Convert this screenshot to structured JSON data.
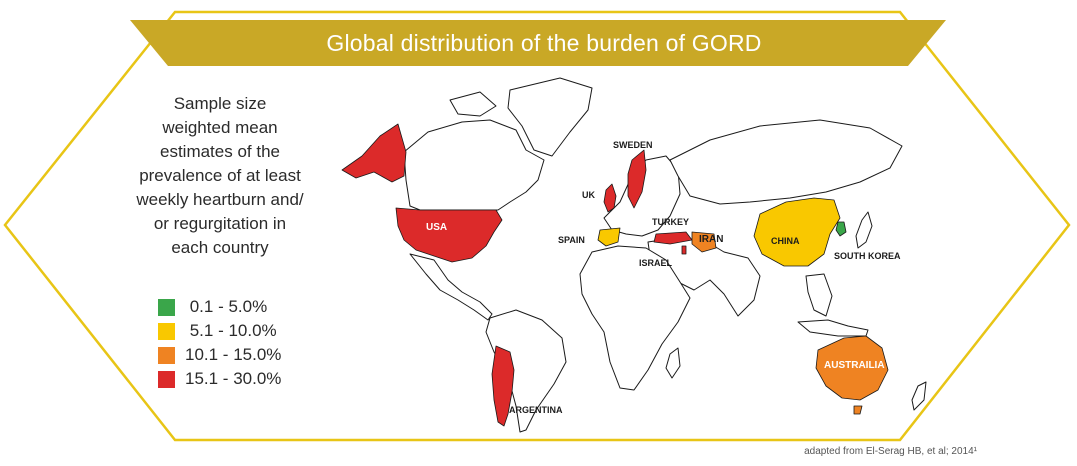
{
  "title": "Global distribution of the burden of GORD",
  "description": [
    "Sample size",
    "weighted mean",
    "estimates of the",
    "prevalence of at least",
    "weekly heartburn and/",
    "or regurgitation in",
    "each country"
  ],
  "legend": [
    {
      "label": " 0.1 - 5.0%",
      "color": "#3aa64a"
    },
    {
      "label": " 5.1 - 10.0%",
      "color": "#f9c800"
    },
    {
      "label": "10.1 - 15.0%",
      "color": "#ef8322"
    },
    {
      "label": "15.1 - 30.0%",
      "color": "#dc2a2a"
    }
  ],
  "countries": {
    "usa": {
      "label": "USA",
      "category": "15.1 - 30.0%"
    },
    "argentina": {
      "label": "ARGENTINA",
      "category": "15.1 - 30.0%"
    },
    "uk": {
      "label": "UK",
      "category": "15.1 - 30.0%"
    },
    "sweden": {
      "label": "SWEDEN",
      "category": "15.1 - 30.0%"
    },
    "spain": {
      "label": "SPAIN",
      "category": "5.1 - 10.0%"
    },
    "turkey": {
      "label": "TURKEY",
      "category": "15.1 - 30.0%"
    },
    "israel": {
      "label": "ISRAEL",
      "category": "15.1 - 30.0%"
    },
    "iran": {
      "label": "IRAN",
      "category": "10.1 - 15.0%"
    },
    "china": {
      "label": "CHINA",
      "category": "5.1 - 10.0%"
    },
    "south_korea": {
      "label": "SOUTH KOREA",
      "category": "0.1 - 5.0%"
    },
    "australia": {
      "label": "AUSTRAILIA",
      "category": "10.1 - 15.0%"
    }
  },
  "source": "adapted from El-Serag HB, et al; 2014¹",
  "colors": {
    "frame": "#e8c516",
    "band": "#c9a826",
    "land_outline": "#1a1a1a"
  }
}
